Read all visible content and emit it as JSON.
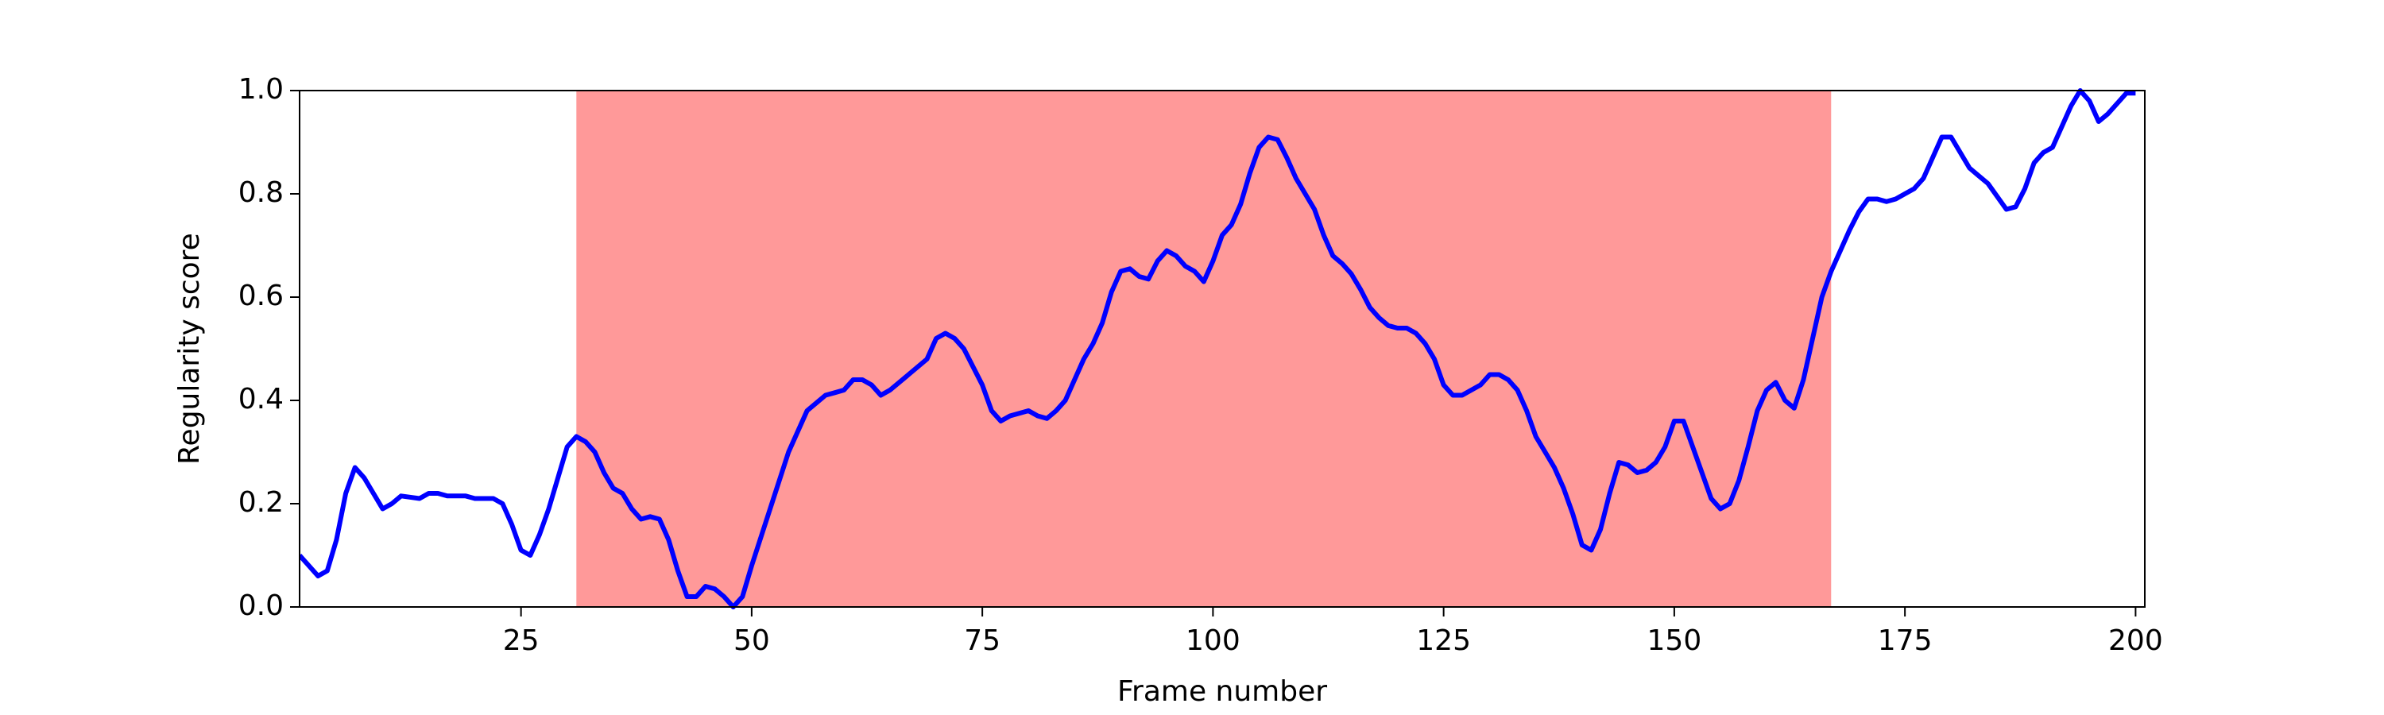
{
  "chart_data": {
    "type": "line",
    "xlabel": "Frame number",
    "ylabel": "Regularity score",
    "x": [
      1,
      2,
      3,
      4,
      5,
      6,
      7,
      8,
      9,
      10,
      11,
      12,
      14,
      15,
      16,
      17,
      19,
      20,
      22,
      23,
      24,
      25,
      26,
      27,
      28,
      29,
      30,
      31,
      32,
      33,
      34,
      35,
      36,
      37,
      38,
      39,
      40,
      41,
      42,
      43,
      44,
      45,
      46,
      47,
      48,
      49,
      50,
      52,
      54,
      56,
      58,
      59,
      60,
      61,
      62,
      63,
      64,
      65,
      67,
      69,
      70,
      71,
      72,
      73,
      75,
      76,
      77,
      78,
      80,
      81,
      82,
      83,
      84,
      85,
      86,
      87,
      88,
      89,
      90,
      91,
      92,
      93,
      94,
      95,
      96,
      97,
      98,
      99,
      100,
      101,
      102,
      103,
      104,
      105,
      106,
      107,
      108,
      109,
      110,
      111,
      112,
      113,
      114,
      115,
      116,
      117,
      118,
      119,
      120,
      121,
      122,
      123,
      124,
      125,
      126,
      127,
      128,
      129,
      130,
      131,
      132,
      133,
      134,
      135,
      136,
      137,
      138,
      139,
      140,
      141,
      142,
      143,
      144,
      145,
      146,
      147,
      148,
      149,
      150,
      151,
      152,
      153,
      154,
      155,
      156,
      157,
      158,
      159,
      160,
      161,
      162,
      163,
      164,
      165,
      166,
      167,
      168,
      169,
      170,
      171,
      172,
      173,
      174,
      175,
      176,
      177,
      178,
      179,
      180,
      181,
      182,
      183,
      184,
      185,
      186,
      187,
      188,
      189,
      190,
      191,
      192,
      193,
      194,
      195,
      196,
      197,
      198,
      199,
      200
    ],
    "values": [
      0.1,
      0.08,
      0.06,
      0.07,
      0.13,
      0.22,
      0.27,
      0.25,
      0.22,
      0.19,
      0.2,
      0.215,
      0.21,
      0.22,
      0.22,
      0.215,
      0.215,
      0.21,
      0.21,
      0.2,
      0.16,
      0.11,
      0.1,
      0.14,
      0.19,
      0.25,
      0.31,
      0.33,
      0.32,
      0.3,
      0.26,
      0.23,
      0.22,
      0.19,
      0.17,
      0.175,
      0.17,
      0.13,
      0.07,
      0.02,
      0.02,
      0.04,
      0.035,
      0.02,
      0.0,
      0.02,
      0.08,
      0.19,
      0.3,
      0.38,
      0.41,
      0.415,
      0.42,
      0.44,
      0.44,
      0.43,
      0.41,
      0.42,
      0.45,
      0.48,
      0.52,
      0.53,
      0.52,
      0.5,
      0.43,
      0.38,
      0.36,
      0.37,
      0.38,
      0.37,
      0.365,
      0.38,
      0.4,
      0.44,
      0.48,
      0.51,
      0.55,
      0.61,
      0.65,
      0.655,
      0.64,
      0.635,
      0.67,
      0.69,
      0.68,
      0.66,
      0.65,
      0.63,
      0.67,
      0.72,
      0.74,
      0.78,
      0.84,
      0.89,
      0.91,
      0.905,
      0.87,
      0.83,
      0.8,
      0.77,
      0.72,
      0.68,
      0.665,
      0.645,
      0.615,
      0.58,
      0.56,
      0.545,
      0.54,
      0.54,
      0.53,
      0.51,
      0.48,
      0.43,
      0.41,
      0.41,
      0.42,
      0.43,
      0.45,
      0.45,
      0.44,
      0.42,
      0.38,
      0.33,
      0.3,
      0.27,
      0.23,
      0.18,
      0.12,
      0.11,
      0.15,
      0.22,
      0.28,
      0.275,
      0.26,
      0.265,
      0.28,
      0.31,
      0.36,
      0.36,
      0.31,
      0.26,
      0.21,
      0.19,
      0.2,
      0.245,
      0.31,
      0.38,
      0.42,
      0.435,
      0.4,
      0.385,
      0.44,
      0.52,
      0.6,
      0.65,
      0.69,
      0.73,
      0.765,
      0.79,
      0.79,
      0.785,
      0.79,
      0.8,
      0.81,
      0.83,
      0.87,
      0.91,
      0.91,
      0.88,
      0.85,
      0.835,
      0.82,
      0.795,
      0.77,
      0.775,
      0.81,
      0.86,
      0.88,
      0.89,
      0.93,
      0.97,
      1.0,
      0.98,
      0.94,
      0.955,
      0.975,
      0.995,
      0.995
    ],
    "color": "#0000ff",
    "span": [
      31,
      167
    ],
    "span_color": "#ff9999",
    "xlim": [
      1,
      201
    ],
    "ylim": [
      0,
      1
    ],
    "xticks": [
      25,
      50,
      75,
      100,
      125,
      150,
      175,
      200
    ],
    "yticks": [
      {
        "value": 0,
        "label": "0.0"
      },
      0.2,
      0.4,
      0.6,
      0.8,
      {
        "value": 1,
        "label": "1.0"
      }
    ],
    "grid": false
  }
}
